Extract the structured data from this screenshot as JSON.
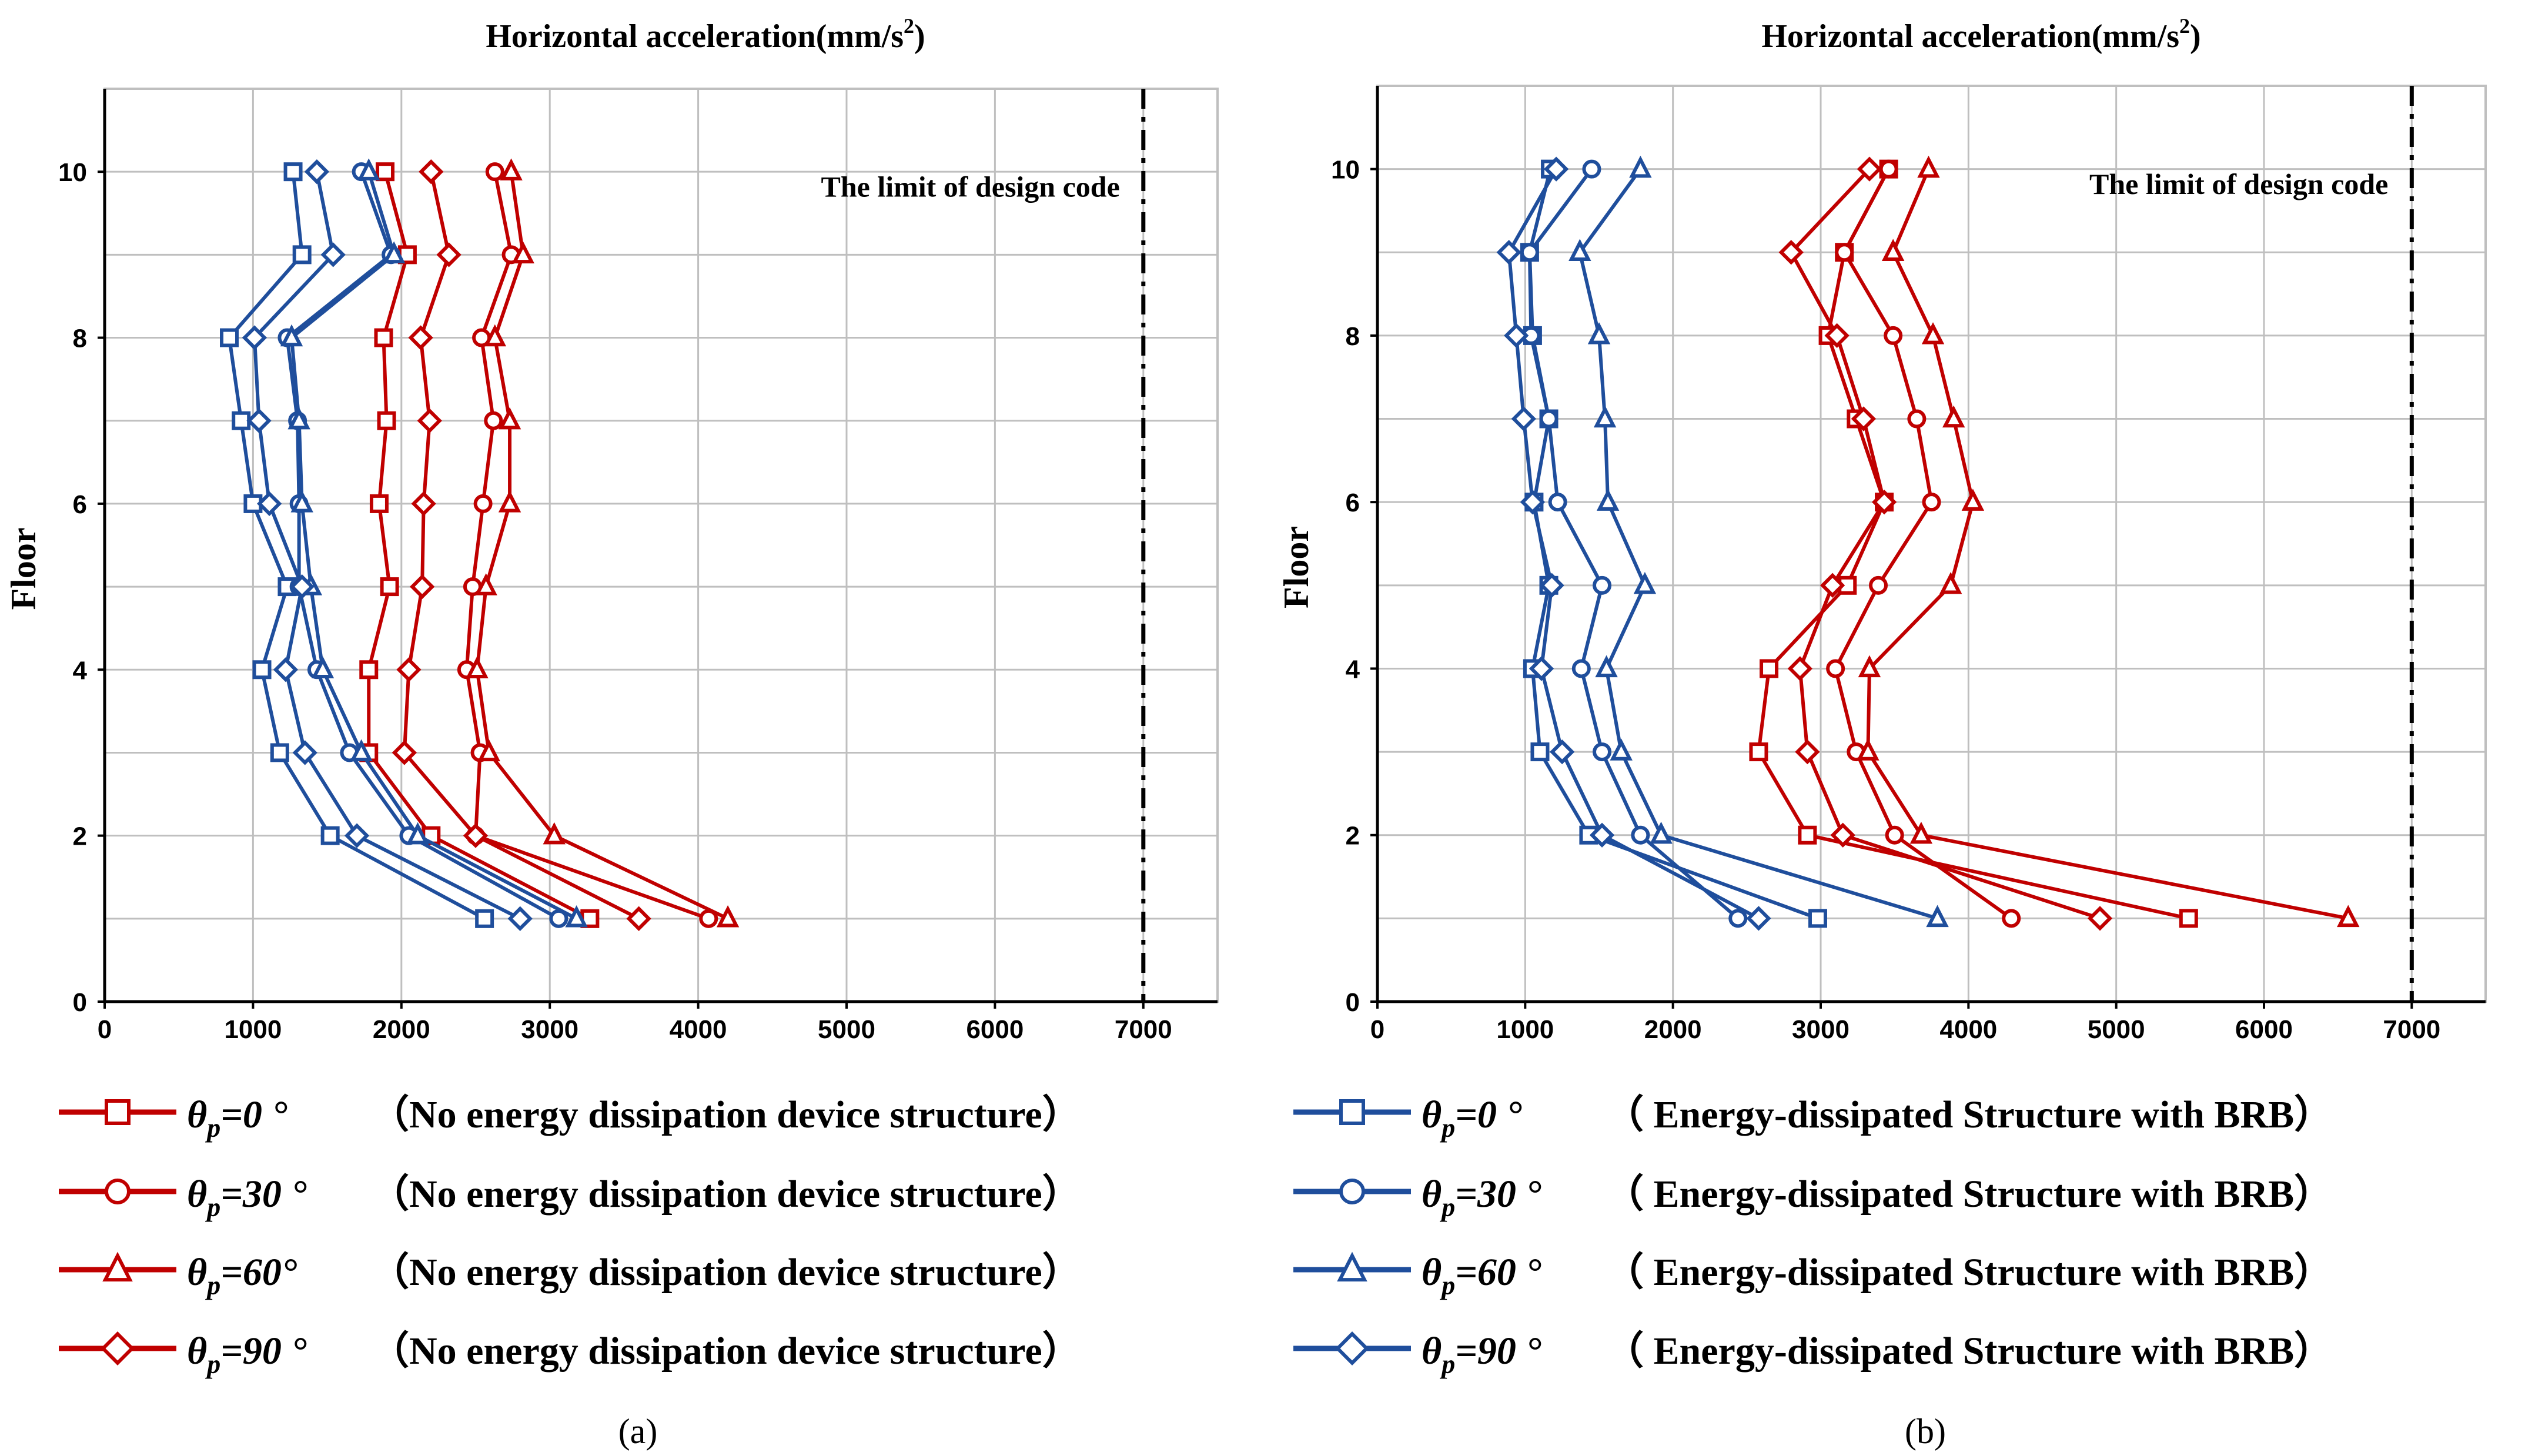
{
  "colors": {
    "red": "#c00000",
    "blue": "#1f4e9c",
    "grid": "#bfbfbf",
    "limit": "#000000"
  },
  "chart_data": [
    {
      "type": "line",
      "panel_label": "(a)",
      "title": "Horizontal acceleration(mm/s",
      "title_sup": "2",
      "title_close": ")",
      "ylabel": "Floor",
      "xlim": [
        0,
        7500
      ],
      "ylim": [
        0,
        11
      ],
      "xticks": [
        "0",
        "1000",
        "2000",
        "3000",
        "4000",
        "5000",
        "6000",
        "7000"
      ],
      "yticks": [
        "0",
        "2",
        "4",
        "6",
        "8",
        "10"
      ],
      "limit_value": 7000,
      "limit_label": "The limit of design code",
      "floors": [
        1,
        2,
        3,
        4,
        5,
        6,
        7,
        8,
        9,
        10
      ],
      "series": [
        {
          "name": "θp=0°",
          "color_key": "red",
          "marker": "square",
          "values": [
            3270,
            2200,
            1780,
            1780,
            1920,
            1850,
            1900,
            1880,
            2040,
            1890
          ]
        },
        {
          "name": "θp=30°",
          "color_key": "red",
          "marker": "circle",
          "values": [
            4070,
            2500,
            2530,
            2440,
            2480,
            2550,
            2620,
            2540,
            2740,
            2630
          ]
        },
        {
          "name": "θp=60°",
          "color_key": "red",
          "marker": "triangle",
          "values": [
            4200,
            3030,
            2590,
            2510,
            2570,
            2730,
            2730,
            2630,
            2820,
            2740
          ]
        },
        {
          "name": "θp=90°",
          "color_key": "red",
          "marker": "diamond",
          "values": [
            3600,
            2500,
            2020,
            2050,
            2140,
            2150,
            2190,
            2130,
            2320,
            2200
          ]
        },
        {
          "name": "θp=0°",
          "color_key": "blue",
          "marker": "square",
          "values": [
            2560,
            1520,
            1180,
            1060,
            1230,
            1000,
            920,
            840,
            1330,
            1270
          ]
        },
        {
          "name": "θp=30°",
          "color_key": "blue",
          "marker": "circle",
          "values": [
            3060,
            2050,
            1650,
            1430,
            1310,
            1310,
            1300,
            1230,
            1930,
            1730
          ]
        },
        {
          "name": "θp=60°",
          "color_key": "blue",
          "marker": "triangle",
          "values": [
            3180,
            2110,
            1730,
            1470,
            1390,
            1330,
            1310,
            1260,
            1950,
            1780
          ]
        },
        {
          "name": "θp=90°",
          "color_key": "blue",
          "marker": "diamond",
          "values": [
            2800,
            1700,
            1350,
            1220,
            1330,
            1110,
            1040,
            1010,
            1540,
            1430
          ]
        }
      ]
    },
    {
      "type": "line",
      "panel_label": "(b)",
      "title": "Horizontal acceleration(mm/s",
      "title_sup": "2",
      "title_close": ")",
      "ylabel": "Floor",
      "xlim": [
        0,
        7500
      ],
      "ylim": [
        0,
        11
      ],
      "xticks": [
        "0",
        "1000",
        "2000",
        "3000",
        "4000",
        "5000",
        "6000",
        "7000"
      ],
      "yticks": [
        "0",
        "2",
        "4",
        "6",
        "8",
        "10"
      ],
      "limit_value": 7000,
      "limit_label": "The limit of design code",
      "floors": [
        1,
        2,
        3,
        4,
        5,
        6,
        7,
        8,
        9,
        10
      ],
      "series": [
        {
          "name": "θp=0°",
          "color_key": "red",
          "marker": "square",
          "values": [
            5490,
            2910,
            2580,
            2650,
            3180,
            3430,
            3240,
            3050,
            3160,
            3460
          ]
        },
        {
          "name": "θp=30°",
          "color_key": "red",
          "marker": "circle",
          "values": [
            4290,
            3500,
            3240,
            3100,
            3390,
            3750,
            3650,
            3490,
            3160,
            3460
          ]
        },
        {
          "name": "θp=60°",
          "color_key": "red",
          "marker": "triangle",
          "values": [
            6570,
            3680,
            3320,
            3330,
            3880,
            4030,
            3900,
            3760,
            3490,
            3730
          ]
        },
        {
          "name": "θp=90°",
          "color_key": "red",
          "marker": "diamond",
          "values": [
            4890,
            3150,
            2910,
            2860,
            3080,
            3430,
            3290,
            3110,
            2800,
            3330
          ]
        },
        {
          "name": "θp=0°",
          "color_key": "blue",
          "marker": "square",
          "values": [
            2980,
            1430,
            1100,
            1050,
            1160,
            1060,
            1160,
            1050,
            1030,
            1170
          ]
        },
        {
          "name": "θp=30°",
          "color_key": "blue",
          "marker": "circle",
          "values": [
            2440,
            1780,
            1520,
            1380,
            1520,
            1220,
            1160,
            1040,
            1030,
            1450
          ]
        },
        {
          "name": "θp=60°",
          "color_key": "blue",
          "marker": "triangle",
          "values": [
            3790,
            1920,
            1650,
            1550,
            1810,
            1560,
            1540,
            1500,
            1370,
            1780
          ]
        },
        {
          "name": "θp=90°",
          "color_key": "blue",
          "marker": "diamond",
          "values": [
            2580,
            1520,
            1250,
            1110,
            1180,
            1050,
            990,
            940,
            890,
            1210
          ]
        }
      ]
    }
  ],
  "legend": [
    {
      "color_key": "red",
      "marker": "square",
      "theta": "θ",
      "sub": "p",
      "angle": "=0 °",
      "desc": "（No energy dissipation device structure）"
    },
    {
      "color_key": "red",
      "marker": "circle",
      "theta": "θ",
      "sub": "p",
      "angle": "=30 °",
      "desc": "（No energy dissipation device structure）"
    },
    {
      "color_key": "red",
      "marker": "triangle",
      "theta": "θ",
      "sub": "p",
      "angle": "=60°",
      "desc": "（No energy dissipation device structure）"
    },
    {
      "color_key": "red",
      "marker": "diamond",
      "theta": "θ",
      "sub": "p",
      "angle": "=90 °",
      "desc": "（No energy dissipation device structure）"
    },
    {
      "color_key": "blue",
      "marker": "square",
      "theta": "θ",
      "sub": "p",
      "angle": "=0 °",
      "desc": "（ Energy-dissipated Structure with BRB）"
    },
    {
      "color_key": "blue",
      "marker": "circle",
      "theta": "θ",
      "sub": "p",
      "angle": "=30 °",
      "desc": "（ Energy-dissipated Structure with BRB）"
    },
    {
      "color_key": "blue",
      "marker": "triangle",
      "theta": "θ",
      "sub": "p",
      "angle": "=60 °",
      "desc": "（ Energy-dissipated Structure with BRB）"
    },
    {
      "color_key": "blue",
      "marker": "diamond",
      "theta": "θ",
      "sub": "p",
      "angle": "=90 °",
      "desc": "（ Energy-dissipated Structure with BRB）"
    }
  ]
}
